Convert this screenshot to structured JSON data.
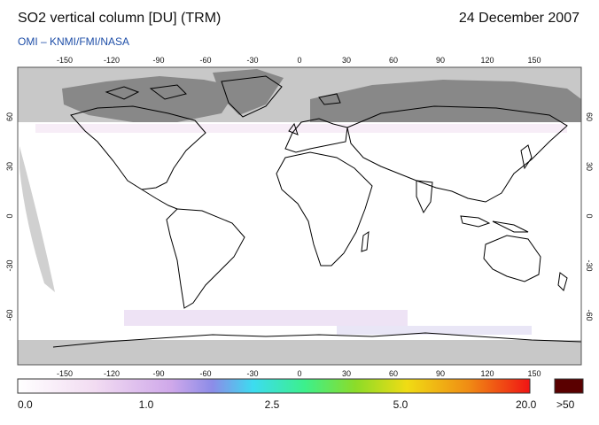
{
  "header": {
    "title": "SO2 vertical column [DU] (TRM)",
    "date": "24 December 2007",
    "credit": "OMI  –  KNMI/FMI/NASA"
  },
  "map": {
    "lon_ticks": [
      "-150",
      "-120",
      "-90",
      "-60",
      "-30",
      "0",
      "30",
      "60",
      "90",
      "120",
      "150"
    ],
    "lat_ticks": [
      "60",
      "30",
      "0",
      "-30",
      "-60"
    ],
    "no_data_color": "#c8c8c8",
    "land_outline_color": "#000000"
  },
  "colorbar": {
    "labels": [
      "0.0",
      "1.0",
      "2.5",
      "5.0",
      "20.0"
    ],
    "overflow_label": ">50",
    "overflow_color": "#5a0000",
    "stops": [
      "#ffffff",
      "#f0d4f0",
      "#c8a0e8",
      "#8c8ce8",
      "#3cdcf0",
      "#3cf08c",
      "#8cdc28",
      "#f0dc14",
      "#f08c14",
      "#f01414"
    ]
  }
}
